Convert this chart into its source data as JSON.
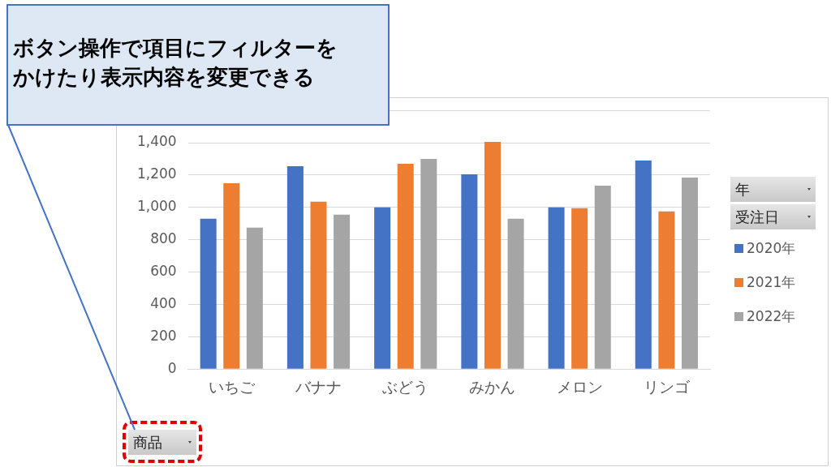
{
  "chart_data": {
    "type": "bar",
    "categories": [
      "いちご",
      "バナナ",
      "ぶどう",
      "みかん",
      "メロン",
      "リンゴ"
    ],
    "series": [
      {
        "name": "2020年",
        "color": "#4472c4",
        "values": [
          930,
          1255,
          1000,
          1205,
          1000,
          1290
        ]
      },
      {
        "name": "2021年",
        "color": "#ed7d31",
        "values": [
          1150,
          1035,
          1270,
          1405,
          995,
          975
        ]
      },
      {
        "name": "2022年",
        "color": "#a5a5a5",
        "values": [
          875,
          955,
          1300,
          930,
          1135,
          1185
        ]
      }
    ],
    "ylim": [
      0,
      1600
    ],
    "yticks": [
      0,
      200,
      400,
      600,
      800,
      {
        "value": 1000,
        "label": "1,000"
      },
      {
        "value": 1200,
        "label": "1,200"
      },
      {
        "value": 1400,
        "label": "1,400"
      },
      {
        "value": 1600,
        "label": null
      }
    ],
    "grid": "y",
    "legend": "right",
    "annotations": [
      "ボタン操作で項目にフィルターをかけたり表示内容を変更できる",
      "年",
      "受注日",
      "商品"
    ]
  }
}
